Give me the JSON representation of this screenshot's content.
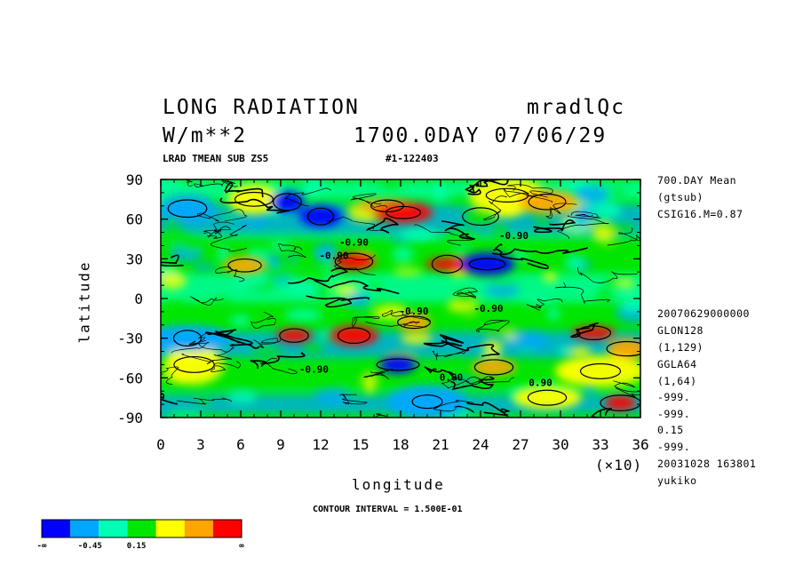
{
  "header": {
    "title": "LONG RADIATION",
    "run_name": "mradlQc",
    "units": "W/m**2",
    "date_label": "1700.0DAY 07/06/29",
    "subtitle_left": "LRAD TMEAN SUB ZS5",
    "subtitle_right": "#1-122403"
  },
  "right_info": {
    "top": [
      "700.DAY Mean",
      "(gtsub)",
      "CSIG16.M=0.87"
    ],
    "bottom": [
      "20070629000000",
      "GLON128",
      "(1,129)",
      "GGLA64",
      "(1,64)",
      "-999.",
      "-999.",
      "0.15",
      "-999.",
      "20031028 163801",
      "yukiko"
    ]
  },
  "footer": {
    "contour_interval": "CONTOUR INTERVAL = 1.500E-01"
  },
  "colorbar": {
    "colors": [
      "#0000ff",
      "#00a6ff",
      "#00ffb3",
      "#00e600",
      "#ffff00",
      "#ffa500",
      "#ff0000"
    ],
    "labels": [
      "-∞",
      "-0.45",
      "0.15",
      "∞"
    ]
  },
  "chart_data": {
    "type": "heatmap",
    "title": "LONG RADIATION",
    "xlabel": "longitude",
    "ylabel": "latitude",
    "x_unit_note": "(×10)",
    "xlim": [
      0,
      36
    ],
    "ylim": [
      -90,
      90
    ],
    "x_ticks": [
      "0",
      "3",
      "6",
      "9",
      "12",
      "15",
      "18",
      "21",
      "24",
      "27",
      "30",
      "33",
      "36"
    ],
    "y_ticks": [
      "-90",
      "-60",
      "-30",
      "0",
      "30",
      "60",
      "90"
    ],
    "grid": false,
    "contour_levels": [
      -0.45,
      0.15
    ],
    "contour_labels": [
      "-0.90",
      "-0.90",
      "-0.90",
      "-0.90",
      "-0.90",
      "-0.90",
      "0.00",
      "0.90"
    ],
    "features": [
      {
        "lon": 7,
        "lat": 75,
        "level": "yellow"
      },
      {
        "lon": 17,
        "lat": 70,
        "level": "orange"
      },
      {
        "lon": 18.2,
        "lat": 65,
        "level": "red"
      },
      {
        "lon": 26,
        "lat": 78,
        "level": "yellow"
      },
      {
        "lon": 29,
        "lat": 73,
        "level": "orange"
      },
      {
        "lon": 9.5,
        "lat": 73,
        "level": "blue"
      },
      {
        "lon": 12,
        "lat": 62,
        "level": "blue"
      },
      {
        "lon": 2,
        "lat": 68,
        "level": "cyan"
      },
      {
        "lon": 24,
        "lat": 62,
        "level": "green"
      },
      {
        "lon": 14.5,
        "lat": 28,
        "level": "red"
      },
      {
        "lon": 21.5,
        "lat": 26,
        "level": "red"
      },
      {
        "lon": 6.3,
        "lat": 25,
        "level": "orange"
      },
      {
        "lon": 24.5,
        "lat": 26,
        "level": "blue"
      },
      {
        "lon": 19,
        "lat": -18,
        "level": "orange"
      },
      {
        "lon": 14.5,
        "lat": -28,
        "level": "red"
      },
      {
        "lon": 10,
        "lat": -28,
        "level": "red"
      },
      {
        "lon": 32.5,
        "lat": -26,
        "level": "red"
      },
      {
        "lon": 35,
        "lat": -38,
        "level": "orange"
      },
      {
        "lon": 2.5,
        "lat": -50,
        "level": "yellow"
      },
      {
        "lon": 33,
        "lat": -55,
        "level": "yellow"
      },
      {
        "lon": 17.8,
        "lat": -50,
        "level": "blue"
      },
      {
        "lon": 2,
        "lat": -30,
        "level": "cyan"
      },
      {
        "lon": 25,
        "lat": -52,
        "level": "orange"
      },
      {
        "lon": 29,
        "lat": -75,
        "level": "yellow"
      },
      {
        "lon": 34.5,
        "lat": -79,
        "level": "red"
      },
      {
        "lon": 20,
        "lat": -78,
        "level": "cyan"
      }
    ]
  }
}
